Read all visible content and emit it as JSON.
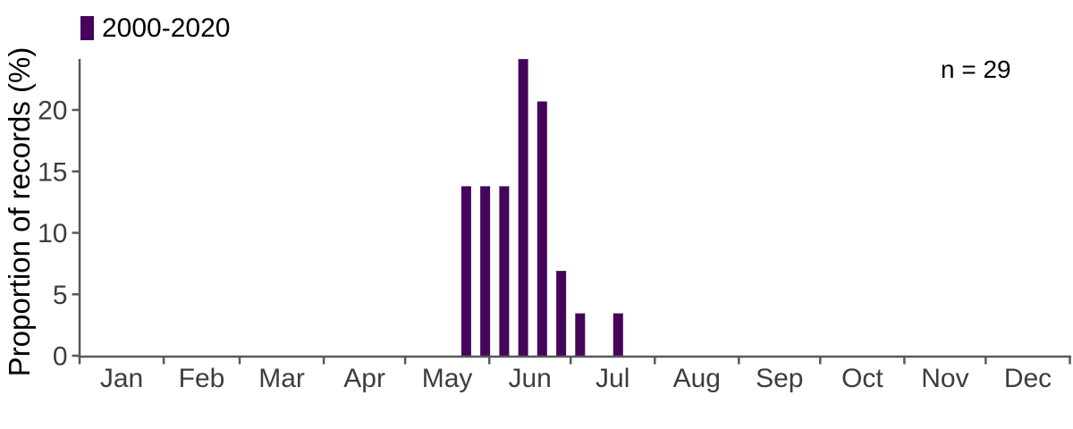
{
  "chart_data": {
    "type": "bar",
    "title": "",
    "ylabel": "Proportion of records (%)",
    "xlabel": "",
    "annotation": "n = 29",
    "legend_position": "top-left",
    "legend_entries": [
      {
        "label": "2000-2020",
        "color": "#45055a"
      }
    ],
    "grid": false,
    "ylim": [
      0,
      24.5
    ],
    "yticks": [
      0,
      5,
      10,
      15,
      20
    ],
    "x_axis": {
      "unit": "day-of-year",
      "range": [
        0,
        365
      ],
      "month_labels": [
        "Jan",
        "Feb",
        "Mar",
        "Apr",
        "May",
        "Jun",
        "Jul",
        "Aug",
        "Sep",
        "Oct",
        "Nov",
        "Dec"
      ],
      "month_days": [
        31,
        28,
        31,
        30,
        31,
        30,
        31,
        31,
        30,
        31,
        30,
        31
      ]
    },
    "bars": [
      {
        "day_of_year": 142.5,
        "value_pct": 13.79
      },
      {
        "day_of_year": 149.5,
        "value_pct": 13.79
      },
      {
        "day_of_year": 156.5,
        "value_pct": 13.79
      },
      {
        "day_of_year": 163.5,
        "value_pct": 24.14
      },
      {
        "day_of_year": 170.5,
        "value_pct": 20.69
      },
      {
        "day_of_year": 177.5,
        "value_pct": 6.9
      },
      {
        "day_of_year": 184.5,
        "value_pct": 3.45
      },
      {
        "day_of_year": 198.5,
        "value_pct": 3.45
      }
    ],
    "colors": {
      "bar": "#45055a",
      "axis_line": "#595959",
      "tick_label": "#3d3d3d",
      "text": "#000000",
      "background": "#ffffff"
    }
  }
}
